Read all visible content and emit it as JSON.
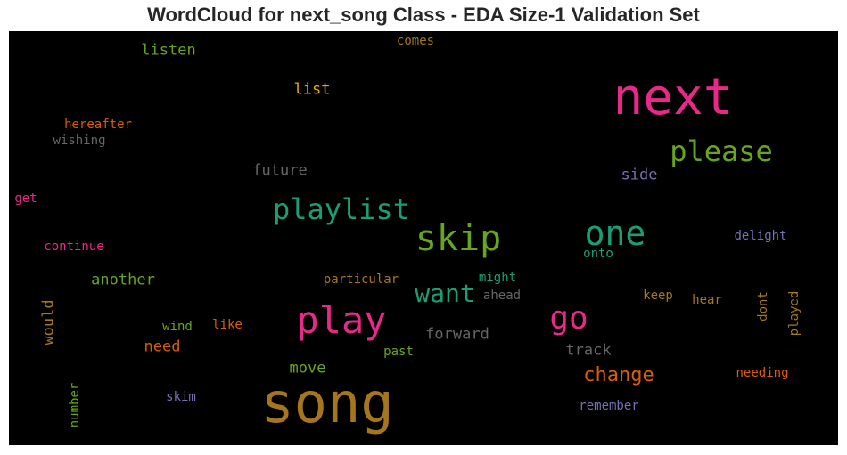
{
  "title": "WordCloud for next_song Class - EDA Size-1 Validation Set",
  "colors": {
    "pink": "#e7298a",
    "green": "#66a61e",
    "teal": "#1b9e77",
    "gold": "#a6761d",
    "orange": "#d95f02",
    "purple": "#7570b3",
    "gray": "#666666",
    "yellow": "#e6ab02"
  },
  "words": [
    "next",
    "song",
    "play",
    "skip",
    "playlist",
    "one",
    "please",
    "go",
    "want",
    "change",
    "listen",
    "list",
    "future",
    "side",
    "another",
    "forward",
    "track",
    "move",
    "need",
    "would",
    "hereafter",
    "wishing",
    "get",
    "continue",
    "comes",
    "delight",
    "onto",
    "particular",
    "might",
    "ahead",
    "keep",
    "hear",
    "dont",
    "played",
    "wind",
    "like",
    "past",
    "needing",
    "number",
    "skim",
    "remember"
  ]
}
